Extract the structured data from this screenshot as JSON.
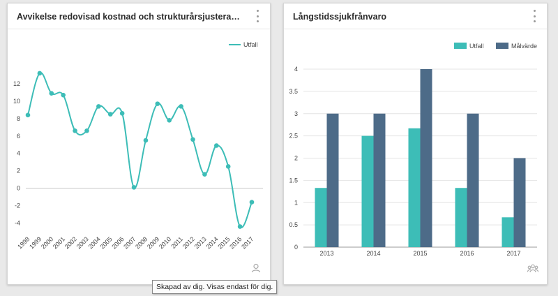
{
  "cards": {
    "left": {
      "title": "Avvikelse redovisad kostnad och strukturårsjusterad standardkostnad"
    },
    "right": {
      "title": "Långstidssjukfrånvaro"
    }
  },
  "tooltip": {
    "text": "Skapad av dig. Visas endast för dig."
  },
  "icons": {
    "left_footer": "person-icon",
    "right_footer": "group-icon",
    "menu": "kebab-menu-icon"
  },
  "chart_data": [
    {
      "type": "line",
      "title": "Avvikelse redovisad kostnad och strukturårsjusterad standardkostnad",
      "categories": [
        "1998",
        "1999",
        "2000",
        "2001",
        "2002",
        "2003",
        "2004",
        "2005",
        "2006",
        "2007",
        "2008",
        "2009",
        "2010",
        "2011",
        "2012",
        "2013",
        "2014",
        "2015",
        "2016",
        "2017"
      ],
      "series": [
        {
          "name": "Utfall",
          "color": "#3dbdb7",
          "values": [
            8.4,
            13.2,
            10.9,
            10.7,
            6.6,
            6.6,
            9.4,
            8.5,
            8.6,
            0.1,
            5.5,
            9.7,
            7.8,
            9.4,
            5.6,
            1.6,
            4.9,
            2.5,
            -4.4,
            -1.6
          ]
        }
      ],
      "yticks": [
        -4,
        -2,
        0,
        2,
        4,
        6,
        8,
        10,
        12
      ],
      "ylim": [
        -5,
        14
      ],
      "grid": false,
      "legend": "top-right"
    },
    {
      "type": "bar",
      "title": "Långstidssjukfrånvaro",
      "categories": [
        "2013",
        "2014",
        "2015",
        "2016",
        "2017"
      ],
      "series": [
        {
          "name": "Utfall",
          "color": "#3dbdb7",
          "values": [
            1.33,
            2.5,
            2.67,
            1.33,
            0.67
          ]
        },
        {
          "name": "Målvärde",
          "color": "#4d6b88",
          "values": [
            3,
            3,
            4,
            3,
            2
          ]
        }
      ],
      "yticks": [
        "0",
        "0.5",
        "1",
        "1.5",
        "2",
        "2.5",
        "3",
        "3.5",
        "4"
      ],
      "ylim": [
        0,
        4
      ],
      "grid": true,
      "legend": "top-right"
    }
  ]
}
